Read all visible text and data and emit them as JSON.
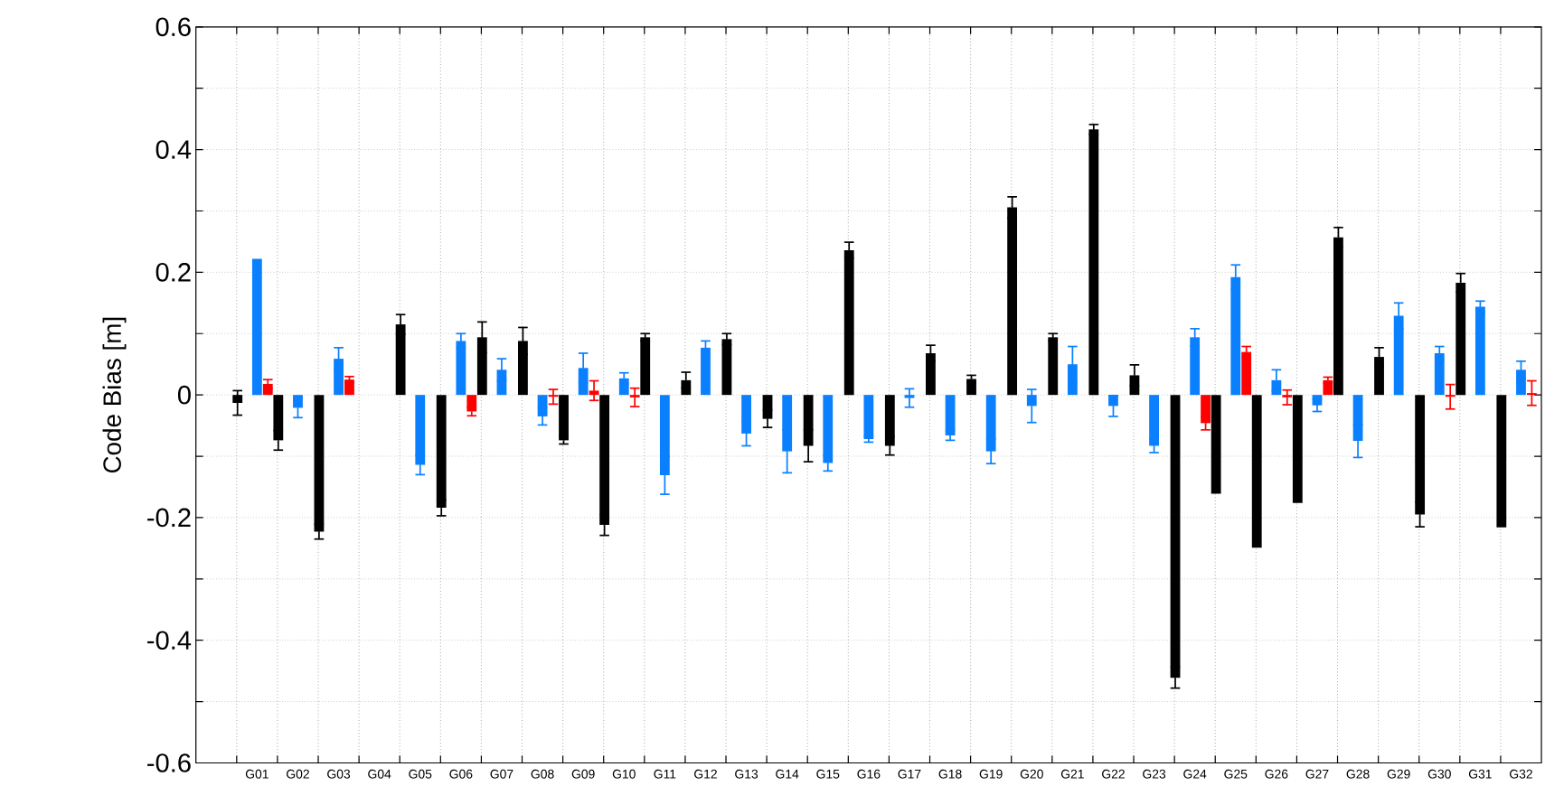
{
  "chart_data": {
    "type": "bar",
    "ylabel": "Code Bias [m]",
    "categories": [
      "G01",
      "G02",
      "G03",
      "G04",
      "G05",
      "G06",
      "G07",
      "G08",
      "G09",
      "G10",
      "G11",
      "G12",
      "G13",
      "G14",
      "G15",
      "G16",
      "G17",
      "G18",
      "G19",
      "G20",
      "G21",
      "G22",
      "G23",
      "G24",
      "G25",
      "G26",
      "G27",
      "G28",
      "G29",
      "G30",
      "G31",
      "G32"
    ],
    "series": [
      {
        "color": "#000000",
        "values": [
          -0.013,
          -0.074,
          -0.223,
          null,
          0.115,
          -0.184,
          0.094,
          0.088,
          -0.074,
          -0.212,
          0.094,
          0.024,
          0.091,
          -0.039,
          -0.083,
          0.236,
          -0.083,
          0.068,
          0.026,
          0.306,
          0.094,
          0.433,
          0.032,
          -0.461,
          -0.161,
          -0.249,
          -0.176,
          0.257,
          0.062,
          -0.195,
          0.183,
          -0.216
        ],
        "errors": [
          0.02,
          0.016,
          0.012,
          null,
          0.016,
          0.013,
          0.025,
          0.022,
          0.006,
          0.017,
          0.006,
          0.013,
          0.009,
          0.014,
          0.026,
          0.013,
          0.015,
          0.013,
          0.006,
          0.017,
          0.006,
          0.008,
          0.017,
          0.017,
          null,
          null,
          null,
          0.016,
          0.015,
          0.02,
          0.015,
          null
        ]
      },
      {
        "color": "#0a80ff",
        "values": [
          0.222,
          -0.021,
          0.059,
          null,
          -0.114,
          0.088,
          0.041,
          -0.035,
          0.044,
          0.027,
          -0.131,
          0.077,
          -0.063,
          -0.092,
          -0.111,
          -0.072,
          -0.005,
          -0.066,
          -0.092,
          -0.018,
          0.05,
          -0.018,
          -0.083,
          0.094,
          0.192,
          0.024,
          -0.017,
          -0.075,
          0.129,
          0.068,
          0.144,
          0.041
        ],
        "errors": [
          null,
          0.016,
          0.018,
          null,
          0.016,
          0.012,
          0.018,
          0.014,
          0.024,
          0.009,
          0.031,
          0.011,
          0.02,
          0.035,
          0.013,
          0.005,
          0.015,
          0.008,
          0.02,
          0.027,
          0.029,
          0.017,
          0.011,
          0.014,
          0.02,
          0.017,
          0.01,
          0.027,
          0.021,
          0.011,
          0.009,
          0.014
        ]
      },
      {
        "color": "#ff0000",
        "values": [
          0.018,
          null,
          0.025,
          null,
          null,
          -0.027,
          null,
          -0.003,
          0.007,
          -0.004,
          null,
          null,
          null,
          null,
          null,
          null,
          null,
          null,
          null,
          null,
          null,
          null,
          null,
          -0.046,
          0.07,
          -0.004,
          0.024,
          null,
          null,
          -0.003,
          null,
          0.003
        ],
        "errors": [
          0.007,
          null,
          0.005,
          null,
          null,
          0.007,
          null,
          0.012,
          0.016,
          0.015,
          null,
          null,
          null,
          null,
          null,
          null,
          null,
          null,
          null,
          null,
          null,
          null,
          null,
          0.011,
          0.009,
          0.012,
          0.005,
          null,
          null,
          0.02,
          null,
          0.02
        ]
      }
    ],
    "ylim": [
      -0.6,
      0.6
    ],
    "yticks": [
      -0.6,
      {
        "value": -0.5,
        "label": null
      },
      -0.4,
      {
        "value": -0.3,
        "label": null
      },
      -0.2,
      {
        "value": -0.1,
        "label": null
      },
      0,
      {
        "value": 0.1,
        "label": null
      },
      0.2,
      {
        "value": 0.3,
        "label": null
      },
      0.4,
      {
        "value": 0.5,
        "label": null
      },
      0.6
    ],
    "grid": true
  }
}
